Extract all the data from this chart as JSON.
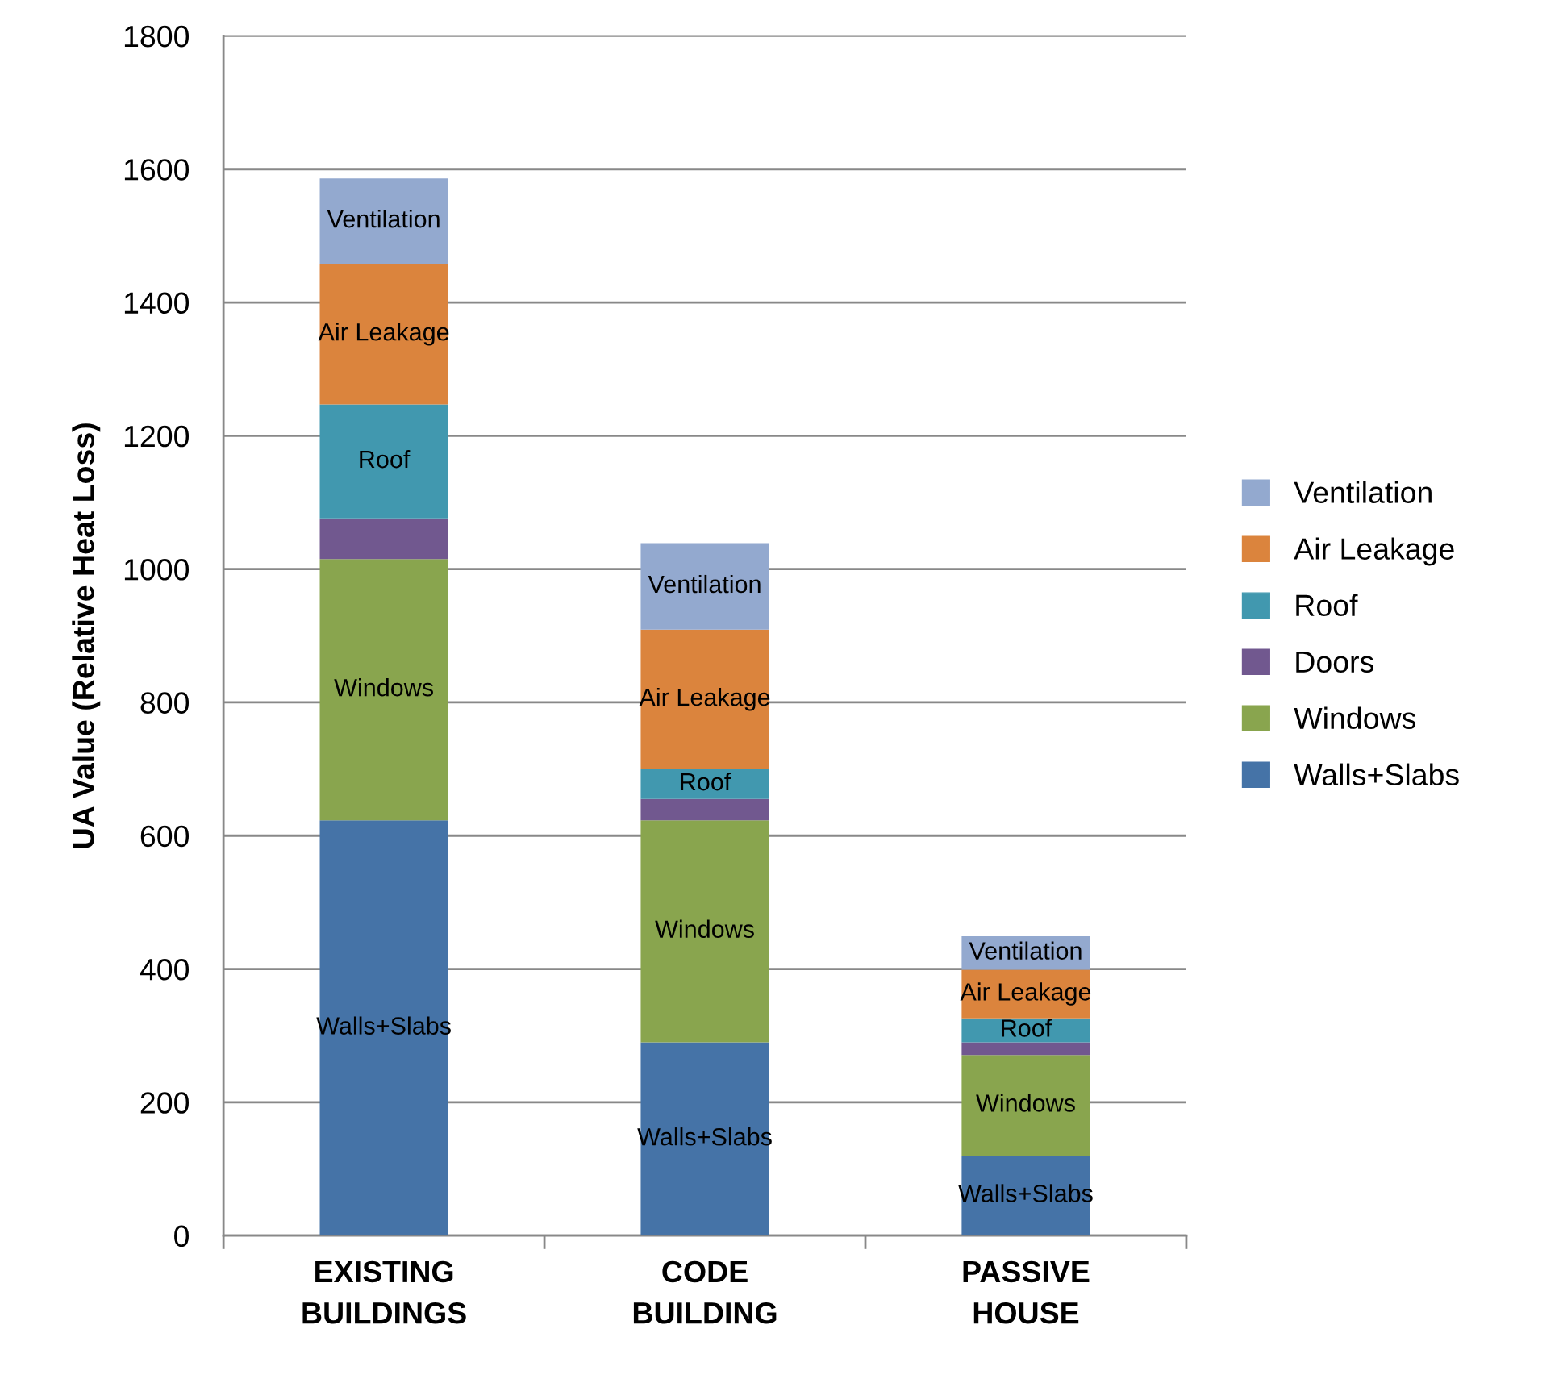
{
  "chart_data": {
    "type": "bar",
    "stacked": true,
    "ylabel": "UA Value (Relative Heat Loss)",
    "categories": [
      "EXISTING\nBUILDINGS",
      "CODE\nBUILDING",
      "PASSIVE\nHOUSE"
    ],
    "series": [
      {
        "name": "Walls+Slabs",
        "color": "#4573a7",
        "values": [
          623,
          290,
          120
        ],
        "value_labels": [
          "Walls+Slabs",
          "Walls+Slabs",
          "Walls+Slabs"
        ]
      },
      {
        "name": "Windows",
        "color": "#89a54e",
        "values": [
          392,
          333,
          151
        ],
        "value_labels": [
          "Windows",
          "Windows",
          "Windows"
        ]
      },
      {
        "name": "Doors",
        "color": "#71588f",
        "values": [
          61,
          32,
          19
        ]
      },
      {
        "name": "Roof",
        "color": "#4198af",
        "values": [
          171,
          45,
          36
        ],
        "value_labels": [
          "Roof",
          "Roof",
          "Roof"
        ]
      },
      {
        "name": "Air Leakage",
        "color": "#db843d",
        "values": [
          211,
          209,
          73
        ],
        "value_labels": [
          "Air Leakage",
          "Air Leakage",
          "Air Leakage"
        ]
      },
      {
        "name": "Ventilation",
        "color": "#93a9cf",
        "values": [
          128,
          130,
          50
        ],
        "value_labels": [
          "Ventilation",
          "Ventilation",
          "Ventilation"
        ]
      }
    ],
    "ylim": [
      0,
      1800
    ],
    "yticks": [
      0,
      200,
      400,
      600,
      800,
      1000,
      1200,
      1400,
      1600,
      1800
    ],
    "grid": "y",
    "legend": "right"
  }
}
